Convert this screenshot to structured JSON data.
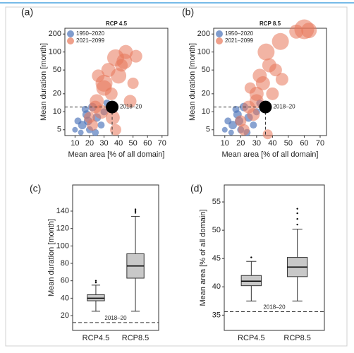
{
  "chart_data": [
    {
      "type": "scatter",
      "label": "(a)",
      "title": "RCP 4.5",
      "xlabel": "Mean area [% of all domain]",
      "ylabel": "Mean duration [month]",
      "xlim": [
        3,
        74
      ],
      "ylim": [
        4,
        250
      ],
      "log_y": true,
      "xticks": [
        10,
        20,
        30,
        40,
        50,
        60,
        70
      ],
      "yticks": [
        5,
        10,
        20,
        50,
        100,
        200
      ],
      "legend": "upper left",
      "series": [
        {
          "name": "1950–2020",
          "color": "#4a72b8",
          "x": [
            10,
            12,
            15,
            18,
            20,
            22,
            25,
            28,
            17,
            14,
            30,
            32,
            24,
            19
          ],
          "values": [
            5,
            7,
            6,
            9,
            5,
            12,
            8,
            6,
            11,
            4.5,
            10,
            14,
            4.5,
            7
          ],
          "sizes": [
            4,
            5,
            6,
            6,
            5,
            6,
            6,
            5,
            5,
            4,
            5,
            5,
            5,
            6
          ]
        },
        {
          "name": "2021–2099",
          "color": "#e8775a",
          "x": [
            20,
            25,
            30,
            33,
            38,
            45,
            42,
            35,
            28,
            22,
            40,
            50,
            48,
            36,
            30,
            26,
            44,
            52,
            24,
            38
          ],
          "values": [
            8,
            15,
            30,
            50,
            80,
            100,
            60,
            20,
            10,
            6,
            40,
            30,
            15,
            8,
            25,
            40,
            70,
            85,
            12,
            5
          ],
          "sizes": [
            8,
            10,
            12,
            10,
            12,
            10,
            9,
            9,
            10,
            8,
            11,
            8,
            9,
            10,
            11,
            9,
            11,
            9,
            9,
            8
          ]
        }
      ],
      "reference": {
        "label": "2018–20",
        "x": 35.6,
        "y": 12
      }
    },
    {
      "type": "scatter",
      "label": "(b)",
      "title": "RCP 8.5",
      "xlabel": "Mean area [% of all domain]",
      "ylabel": "Mean duration [month]",
      "xlim": [
        3,
        74
      ],
      "ylim": [
        4,
        250
      ],
      "log_y": true,
      "xticks": [
        10,
        20,
        30,
        40,
        50,
        60,
        70
      ],
      "yticks": [
        5,
        10,
        20,
        50,
        100,
        200
      ],
      "legend": "upper left",
      "series": [
        {
          "name": "1950–2020",
          "color": "#4a72b8",
          "x": [
            10,
            12,
            15,
            18,
            20,
            22,
            25,
            28,
            17,
            14,
            30,
            32,
            24,
            19
          ],
          "values": [
            5,
            7,
            6,
            9,
            5,
            12,
            8,
            6,
            11,
            4.5,
            10,
            14,
            4.5,
            7
          ],
          "sizes": [
            4,
            5,
            6,
            6,
            5,
            6,
            6,
            5,
            5,
            4,
            5,
            5,
            5,
            6
          ]
        },
        {
          "name": "2021–2099",
          "color": "#e8775a",
          "x": [
            20,
            25,
            30,
            32,
            38,
            42,
            36,
            45,
            55,
            60,
            63,
            34,
            40,
            28,
            22,
            37,
            46,
            30,
            26
          ],
          "values": [
            7,
            12,
            20,
            40,
            60,
            50,
            100,
            150,
            220,
            240,
            230,
            30,
            20,
            9,
            5,
            4.2,
            35,
            15,
            25
          ],
          "sizes": [
            8,
            9,
            10,
            10,
            10,
            9,
            12,
            12,
            10,
            14,
            11,
            10,
            9,
            9,
            8,
            7,
            9,
            10,
            8
          ]
        }
      ],
      "reference": {
        "label": "2018–20",
        "x": 35.6,
        "y": 12
      }
    },
    {
      "type": "box",
      "label": "(c)",
      "ylabel": "Mean duration [month]",
      "categories": [
        "RCP4.5",
        "RCP8.5"
      ],
      "ylim": [
        3,
        170
      ],
      "yticks": [
        20,
        40,
        60,
        80,
        100,
        120,
        140
      ],
      "color": "#c8c8c8",
      "boxes": [
        {
          "whisker_low": 25,
          "q1": 37,
          "median": 40,
          "q3": 44,
          "whisker_high": 55,
          "outliers": [
            58,
            60
          ]
        },
        {
          "whisker_low": 25,
          "q1": 63,
          "median": 77,
          "q3": 91,
          "whisker_high": 134,
          "outliers": [
            138,
            140,
            142
          ]
        }
      ],
      "reference": {
        "label": "2018–20",
        "y": 12
      }
    },
    {
      "type": "box",
      "label": "(d)",
      "ylabel": "Mean area [% of all domain]",
      "categories": [
        "RCP4.5",
        "RCP8.5"
      ],
      "ylim": [
        32.3,
        58
      ],
      "yticks": [
        35,
        40,
        45,
        50,
        55
      ],
      "color": "#c8c8c8",
      "boxes": [
        {
          "whisker_low": 37.5,
          "q1": 40.2,
          "median": 41,
          "q3": 42,
          "whisker_high": 44.5,
          "outliers": [
            45.2
          ]
        },
        {
          "whisker_low": 37.5,
          "q1": 41.8,
          "median": 43.5,
          "q3": 45.2,
          "whisker_high": 50.2,
          "outliers": [
            51,
            52,
            53,
            53.8
          ]
        }
      ],
      "reference": {
        "label": "2018–20",
        "y": 35.6
      }
    }
  ]
}
